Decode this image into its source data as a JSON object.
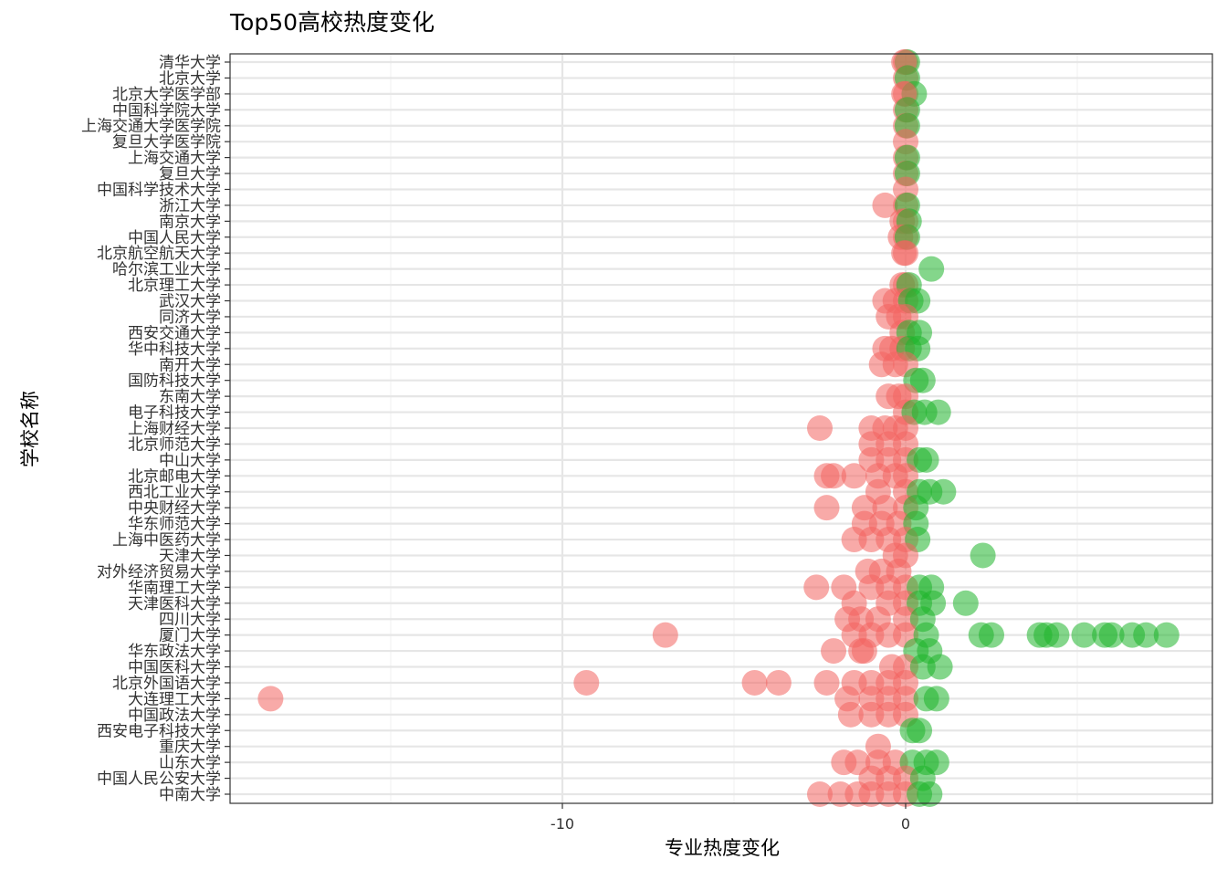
{
  "chart_data": {
    "type": "scatter",
    "title": "Top50高校热度变化",
    "xlabel": "专业热度变化",
    "ylabel": "学校名称",
    "xlim": [
      -19.5,
      8.8
    ],
    "x_ticks": [
      -10,
      0
    ],
    "x_tick_labels": [
      "-10",
      "0"
    ],
    "grid": true,
    "legend": "none",
    "theme": "bw",
    "colors": {
      "positive": "#1FB52B",
      "negative": "#F26560"
    },
    "categories": [
      "清华大学",
      "北京大学",
      "北京大学医学部",
      "中国科学院大学",
      "上海交通大学医学院",
      "复旦大学医学院",
      "上海交通大学",
      "复旦大学",
      "中国科学技术大学",
      "浙江大学",
      "南京大学",
      "中国人民大学",
      "北京航空航天大学",
      "哈尔滨工业大学",
      "北京理工大学",
      "武汉大学",
      "同济大学",
      "西安交通大学",
      "华中科技大学",
      "南开大学",
      "国防科技大学",
      "东南大学",
      "电子科技大学",
      "上海财经大学",
      "北京师范大学",
      "中山大学",
      "北京邮电大学",
      "西北工业大学",
      "中央财经大学",
      "华东师范大学",
      "上海中医药大学",
      "天津大学",
      "对外经济贸易大学",
      "华南理工大学",
      "天津医科大学",
      "四川大学",
      "厦门大学",
      "华东政法大学",
      "中国医科大学",
      "北京外国语大学",
      "大连理工大学",
      "中国政法大学",
      "西安电子科技大学",
      "重庆大学",
      "山东大学",
      "中国人民公安大学",
      "中南大学"
    ],
    "series": [
      {
        "values": [
          [
            "清华大学",
            0.0
          ],
          [
            "清华大学",
            0.05
          ],
          [
            "清华大学",
            -0.05
          ],
          [
            "北京大学",
            0.0
          ],
          [
            "北京大学",
            0.05
          ],
          [
            "北京大学医学部",
            0.0
          ],
          [
            "北京大学医学部",
            0.25
          ],
          [
            "北京大学医学部",
            -0.05
          ],
          [
            "中国科学院大学",
            0.0
          ],
          [
            "中国科学院大学",
            0.05
          ],
          [
            "上海交通大学医学院",
            0.0
          ],
          [
            "上海交通大学医学院",
            0.05
          ],
          [
            "复旦大学医学院",
            0.0
          ],
          [
            "上海交通大学",
            0.0
          ],
          [
            "上海交通大学",
            0.05
          ],
          [
            "复旦大学",
            0.0
          ],
          [
            "复旦大学",
            0.05
          ],
          [
            "中国科学技术大学",
            0.0
          ],
          [
            "浙江大学",
            -0.6
          ],
          [
            "浙江大学",
            0.0
          ],
          [
            "浙江大学",
            0.05
          ],
          [
            "南京大学",
            -0.1
          ],
          [
            "南京大学",
            0.0
          ],
          [
            "南京大学",
            0.1
          ],
          [
            "中国人民大学",
            -0.15
          ],
          [
            "中国人民大学",
            0.0
          ],
          [
            "中国人民大学",
            0.05
          ],
          [
            "北京航空航天大学",
            -0.05
          ],
          [
            "北京航空航天大学",
            0.0
          ],
          [
            "哈尔滨工业大学",
            0.75
          ],
          [
            "北京理工大学",
            0.0
          ],
          [
            "北京理工大学",
            -0.1
          ],
          [
            "北京理工大学",
            0.1
          ],
          [
            "武汉大学",
            -0.6
          ],
          [
            "武汉大学",
            -0.3
          ],
          [
            "武汉大学",
            0.0
          ],
          [
            "武汉大学",
            0.15
          ],
          [
            "武汉大学",
            0.35
          ],
          [
            "同济大学",
            -0.5
          ],
          [
            "同济大学",
            -0.2
          ],
          [
            "同济大学",
            0.0
          ],
          [
            "西安交通大学",
            -0.1
          ],
          [
            "西安交通大学",
            0.1
          ],
          [
            "西安交通大学",
            0.4
          ],
          [
            "华中科技大学",
            -0.6
          ],
          [
            "华中科技大学",
            -0.4
          ],
          [
            "华中科技大学",
            -0.1
          ],
          [
            "华中科技大学",
            0.1
          ],
          [
            "华中科技大学",
            0.35
          ],
          [
            "南开大学",
            -0.7
          ],
          [
            "南开大学",
            -0.3
          ],
          [
            "南开大学",
            0.0
          ],
          [
            "国防科技大学",
            0.3
          ],
          [
            "国防科技大学",
            0.5
          ],
          [
            "东南大学",
            -0.5
          ],
          [
            "东南大学",
            -0.2
          ],
          [
            "东南大学",
            0.0
          ],
          [
            "电子科技大学",
            0.0
          ],
          [
            "电子科技大学",
            0.25
          ],
          [
            "电子科技大学",
            0.55
          ],
          [
            "电子科技大学",
            0.95
          ],
          [
            "上海财经大学",
            -2.5
          ],
          [
            "上海财经大学",
            -1.0
          ],
          [
            "上海财经大学",
            -0.6
          ],
          [
            "上海财经大学",
            -0.3
          ],
          [
            "上海财经大学",
            0.0
          ],
          [
            "北京师范大学",
            -1.0
          ],
          [
            "北京师范大学",
            -0.5
          ],
          [
            "北京师范大学",
            0.0
          ],
          [
            "中山大学",
            -1.0
          ],
          [
            "中山大学",
            -0.5
          ],
          [
            "中山大学",
            0.0
          ],
          [
            "中山大学",
            0.4
          ],
          [
            "中山大学",
            0.6
          ],
          [
            "北京邮电大学",
            -2.3
          ],
          [
            "北京邮电大学",
            -2.1
          ],
          [
            "北京邮电大学",
            -1.5
          ],
          [
            "北京邮电大学",
            -0.8
          ],
          [
            "北京邮电大学",
            -0.3
          ],
          [
            "北京邮电大学",
            0.0
          ],
          [
            "西北工业大学",
            -0.8
          ],
          [
            "西北工业大学",
            0.0
          ],
          [
            "西北工业大学",
            0.4
          ],
          [
            "西北工业大学",
            0.7
          ],
          [
            "西北工业大学",
            1.1
          ],
          [
            "中央财经大学",
            -2.3
          ],
          [
            "中央财经大学",
            -1.2
          ],
          [
            "中央财经大学",
            -0.6
          ],
          [
            "中央财经大学",
            0.0
          ],
          [
            "中央财经大学",
            0.3
          ],
          [
            "华东师范大学",
            -1.2
          ],
          [
            "华东师范大学",
            -0.7
          ],
          [
            "华东师范大学",
            -0.2
          ],
          [
            "华东师范大学",
            0.3
          ],
          [
            "上海中医药大学",
            -1.5
          ],
          [
            "上海中医药大学",
            -1.0
          ],
          [
            "上海中医药大学",
            -0.5
          ],
          [
            "上海中医药大学",
            0.0
          ],
          [
            "上海中医药大学",
            0.35
          ],
          [
            "天津大学",
            2.25
          ],
          [
            "天津大学",
            -0.3
          ],
          [
            "天津大学",
            0.0
          ],
          [
            "对外经济贸易大学",
            -1.1
          ],
          [
            "对外经济贸易大学",
            -0.7
          ],
          [
            "对外经济贸易大学",
            -0.2
          ],
          [
            "华南理工大学",
            -2.6
          ],
          [
            "华南理工大学",
            -1.8
          ],
          [
            "华南理工大学",
            -1.0
          ],
          [
            "华南理工大学",
            -0.5
          ],
          [
            "华南理工大学",
            0.0
          ],
          [
            "华南理工大学",
            0.4
          ],
          [
            "华南理工大学",
            0.75
          ],
          [
            "天津医科大学",
            -1.5
          ],
          [
            "天津医科大学",
            -0.5
          ],
          [
            "天津医科大学",
            0.0
          ],
          [
            "天津医科大学",
            0.4
          ],
          [
            "天津医科大学",
            0.8
          ],
          [
            "天津医科大学",
            1.75
          ],
          [
            "四川大学",
            -1.7
          ],
          [
            "四川大学",
            -1.3
          ],
          [
            "四川大学",
            -0.8
          ],
          [
            "四川大学",
            0.0
          ],
          [
            "四川大学",
            0.5
          ],
          [
            "厦门大学",
            -7.0
          ],
          [
            "厦门大学",
            -1.5
          ],
          [
            "厦门大学",
            -1.0
          ],
          [
            "厦门大学",
            -0.5
          ],
          [
            "厦门大学",
            0.0
          ],
          [
            "厦门大学",
            0.6
          ],
          [
            "厦门大学",
            2.2
          ],
          [
            "厦门大学",
            2.5
          ],
          [
            "厦门大学",
            3.9
          ],
          [
            "厦门大学",
            4.1
          ],
          [
            "厦门大学",
            4.4
          ],
          [
            "厦门大学",
            5.2
          ],
          [
            "厦门大学",
            5.8
          ],
          [
            "厦门大学",
            6.0
          ],
          [
            "厦门大学",
            6.6
          ],
          [
            "厦门大学",
            7.0
          ],
          [
            "厦门大学",
            7.6
          ],
          [
            "华东政法大学",
            -2.1
          ],
          [
            "华东政法大学",
            -1.3
          ],
          [
            "华东政法大学",
            -1.2
          ],
          [
            "华东政法大学",
            0.3
          ],
          [
            "华东政法大学",
            0.7
          ],
          [
            "中国医科大学",
            -0.4
          ],
          [
            "中国医科大学",
            0.0
          ],
          [
            "中国医科大学",
            0.5
          ],
          [
            "中国医科大学",
            1.0
          ],
          [
            "北京外国语大学",
            -9.3
          ],
          [
            "北京外国语大学",
            -4.4
          ],
          [
            "北京外国语大学",
            -3.7
          ],
          [
            "北京外国语大学",
            -2.3
          ],
          [
            "北京外国语大学",
            -1.5
          ],
          [
            "北京外国语大学",
            -1.0
          ],
          [
            "北京外国语大学",
            -0.5
          ],
          [
            "北京外国语大学",
            0.0
          ],
          [
            "大连理工大学",
            -18.5
          ],
          [
            "大连理工大学",
            -1.7
          ],
          [
            "大连理工大学",
            -1.0
          ],
          [
            "大连理工大学",
            -0.5
          ],
          [
            "大连理工大学",
            0.0
          ],
          [
            "大连理工大学",
            0.6
          ],
          [
            "大连理工大学",
            0.9
          ],
          [
            "中国政法大学",
            -1.6
          ],
          [
            "中国政法大学",
            -1.0
          ],
          [
            "中国政法大学",
            -0.5
          ],
          [
            "中国政法大学",
            0.0
          ],
          [
            "西安电子科技大学",
            0.2
          ],
          [
            "西安电子科技大学",
            0.4
          ],
          [
            "重庆大学",
            -0.8
          ],
          [
            "山东大学",
            -1.8
          ],
          [
            "山东大学",
            -1.4
          ],
          [
            "山东大学",
            -0.8
          ],
          [
            "山东大学",
            -0.3
          ],
          [
            "山东大学",
            0.2
          ],
          [
            "山东大学",
            0.6
          ],
          [
            "山东大学",
            0.9
          ],
          [
            "中国人民公安大学",
            -1.0
          ],
          [
            "中国人民公安大学",
            -0.5
          ],
          [
            "中国人民公安大学",
            0.0
          ],
          [
            "中国人民公安大学",
            0.5
          ],
          [
            "中南大学",
            -2.5
          ],
          [
            "中南大学",
            -1.9
          ],
          [
            "中南大学",
            -1.4
          ],
          [
            "中南大学",
            -1.0
          ],
          [
            "中南大学",
            -0.5
          ],
          [
            "中南大学",
            0.0
          ],
          [
            "中南大学",
            0.4
          ],
          [
            "中南大学",
            0.7
          ]
        ]
      }
    ]
  }
}
